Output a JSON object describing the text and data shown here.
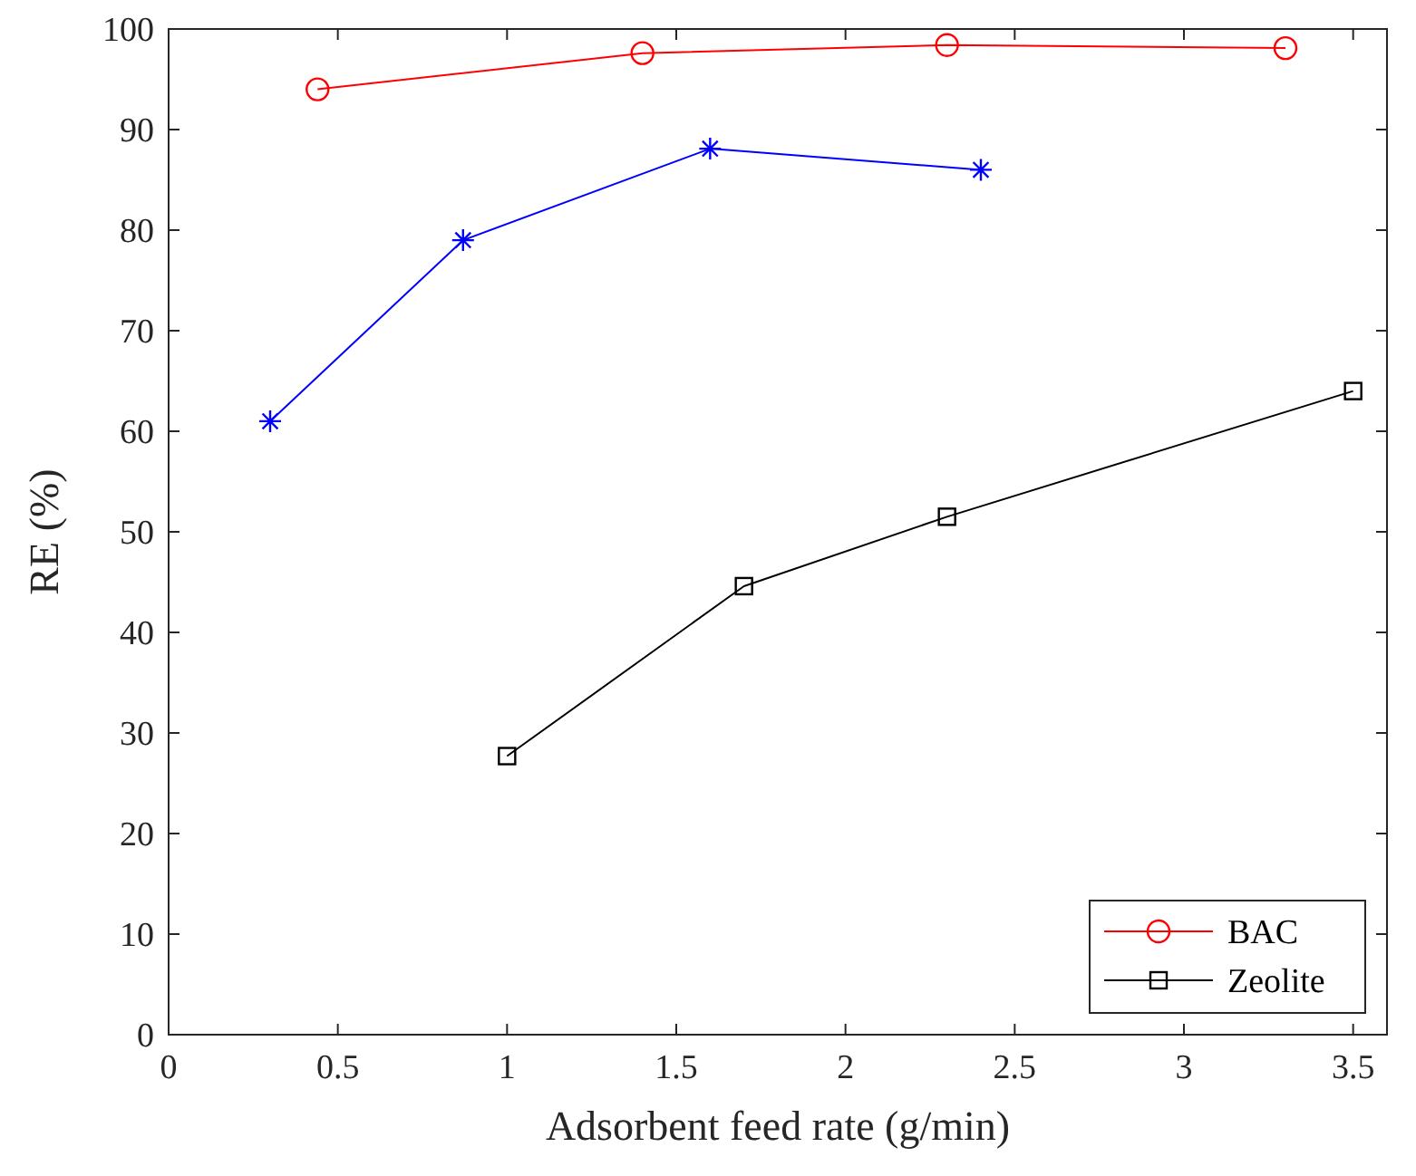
{
  "chart_data": {
    "type": "line",
    "xlabel": "Adsorbent feed rate (g/min)",
    "ylabel": "RE (%)",
    "xlim": [
      0,
      3.6
    ],
    "xticks": [
      0,
      0.5,
      1,
      1.5,
      2,
      2.5,
      3,
      3.5
    ],
    "ylim": [
      0,
      100
    ],
    "yticks": [
      0,
      10,
      20,
      30,
      40,
      50,
      60,
      70,
      80,
      90,
      100
    ],
    "grid": false,
    "legend": "bottom right",
    "series": [
      {
        "name": "BAC",
        "color": "#ff0000",
        "marker": "circle",
        "x": [
          0.44,
          1.4,
          2.3,
          3.3
        ],
        "values": [
          94,
          97.6,
          98.4,
          98.1
        ]
      },
      {
        "color": "#0000ff",
        "marker": "cross",
        "x": [
          0.3,
          0.87,
          1.6,
          2.4
        ],
        "values": [
          61,
          79,
          88.1,
          86
        ]
      },
      {
        "name": "Zeolite",
        "color": "#000000",
        "marker": "square",
        "x": [
          1,
          1.7,
          2.3,
          3.5
        ],
        "values": [
          27.7,
          44.6,
          51.5,
          64
        ]
      }
    ]
  }
}
